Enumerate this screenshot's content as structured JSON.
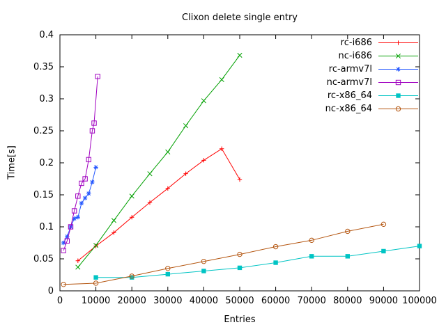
{
  "window": {
    "background": "#ffffff"
  },
  "chart_data": {
    "type": "line",
    "title": "Clixon delete single entry",
    "xlabel": "Entries",
    "ylabel": "Time[s]",
    "xlim": [
      0,
      100000
    ],
    "ylim": [
      0,
      0.4
    ],
    "xticks": [
      0,
      10000,
      20000,
      30000,
      40000,
      50000,
      60000,
      70000,
      80000,
      90000,
      100000
    ],
    "xtick_labels": [
      "0",
      "10000",
      "20000",
      "30000",
      "40000",
      "50000",
      "60000",
      "70000",
      "80000",
      "90000",
      "100000"
    ],
    "yticks": [
      0,
      0.05,
      0.1,
      0.15,
      0.2,
      0.25,
      0.3,
      0.35,
      0.4
    ],
    "ytick_labels": [
      "0",
      "0.05",
      "0.1",
      "0.15",
      "0.2",
      "0.25",
      "0.3",
      "0.35",
      "0.4"
    ],
    "grid": false,
    "legend_position": "top-right-inside",
    "axis_color": "#000000",
    "series": [
      {
        "name": "rc-i686",
        "color": "#ff0000",
        "marker": "plus",
        "x": [
          5000,
          10000,
          15000,
          20000,
          25000,
          30000,
          35000,
          40000,
          45000,
          50000
        ],
        "y": [
          0.047,
          0.07,
          0.091,
          0.115,
          0.138,
          0.16,
          0.183,
          0.204,
          0.222,
          0.174
        ]
      },
      {
        "name": "nc-i686",
        "color": "#00a000",
        "marker": "cross",
        "x": [
          5000,
          10000,
          15000,
          20000,
          25000,
          30000,
          35000,
          40000,
          45000,
          50000
        ],
        "y": [
          0.037,
          0.071,
          0.11,
          0.148,
          0.183,
          0.217,
          0.258,
          0.297,
          0.33,
          0.368
        ]
      },
      {
        "name": "rc-armv7l",
        "color": "#2457ff",
        "marker": "asterisk",
        "x": [
          1000,
          2000,
          3000,
          4000,
          5000,
          6000,
          7000,
          8000,
          9000,
          10000
        ],
        "y": [
          0.075,
          0.085,
          0.1,
          0.113,
          0.115,
          0.137,
          0.145,
          0.152,
          0.17,
          0.193
        ]
      },
      {
        "name": "nc-armv7l",
        "color": "#a000c0",
        "marker": "square-open",
        "x": [
          1000,
          2000,
          3000,
          4000,
          5000,
          6000,
          7000,
          8000,
          9000,
          9500,
          10500
        ],
        "y": [
          0.063,
          0.078,
          0.1,
          0.125,
          0.148,
          0.168,
          0.175,
          0.205,
          0.25,
          0.262,
          0.335
        ]
      },
      {
        "name": "rc-x86_64",
        "color": "#00c4c4",
        "marker": "square-filled",
        "x": [
          10000,
          20000,
          30000,
          40000,
          50000,
          60000,
          70000,
          80000,
          90000,
          100000
        ],
        "y": [
          0.021,
          0.021,
          0.026,
          0.031,
          0.036,
          0.044,
          0.054,
          0.054,
          0.062,
          0.07
        ]
      },
      {
        "name": "nc-x86_64",
        "color": "#b4550f",
        "marker": "circle-open",
        "x": [
          1000,
          10000,
          20000,
          30000,
          40000,
          50000,
          60000,
          70000,
          80000,
          90000
        ],
        "y": [
          0.01,
          0.012,
          0.023,
          0.035,
          0.046,
          0.057,
          0.069,
          0.079,
          0.093,
          0.104
        ]
      }
    ]
  }
}
